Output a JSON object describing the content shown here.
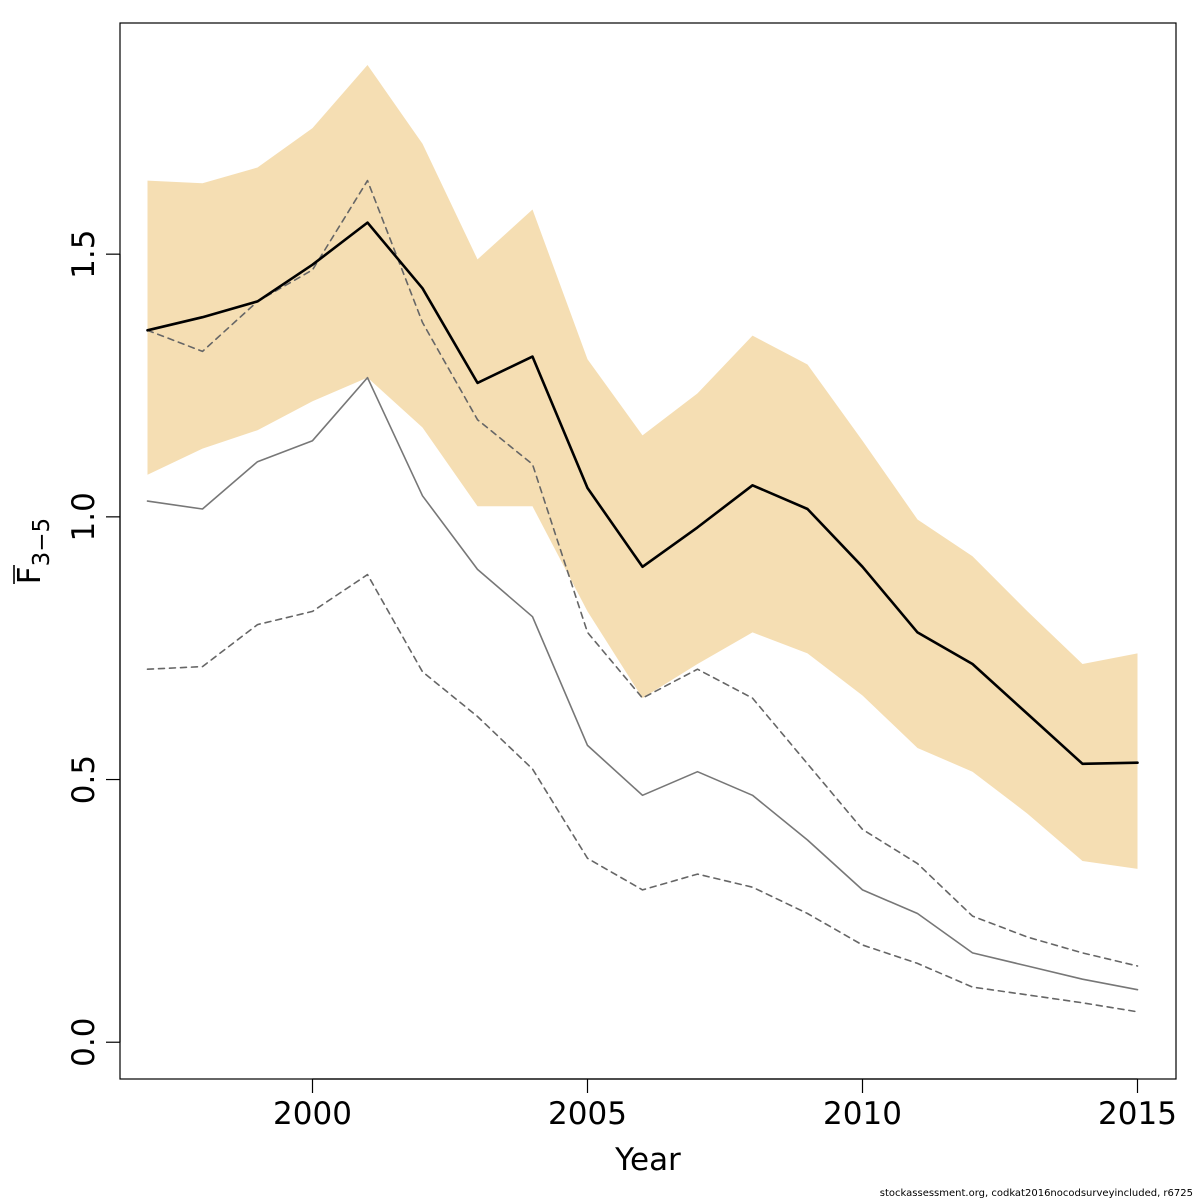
{
  "chart_data": {
    "type": "line",
    "xlabel": "Year",
    "ylabel": {
      "main": "F",
      "subscript": "3−5"
    },
    "footnote": "stockassessment.org, codkat2016nocodsurveyincluded, r6725",
    "xlim": [
      1996.5,
      2015.7
    ],
    "ylim": [
      -0.07,
      1.94
    ],
    "x_ticks": [
      2000,
      2005,
      2010,
      2015
    ],
    "y_ticks": [
      0.0,
      0.5,
      1.0,
      1.5
    ],
    "y_tick_labels": [
      "0.0",
      "0.5",
      "1.0",
      "1.5"
    ],
    "x": [
      1997,
      1998,
      1999,
      2000,
      2001,
      2002,
      2003,
      2004,
      2005,
      2006,
      2007,
      2008,
      2009,
      2010,
      2011,
      2012,
      2013,
      2014,
      2015
    ],
    "band": {
      "color": "#F5DEB3",
      "upper": [
        1.64,
        1.635,
        1.665,
        1.74,
        1.86,
        1.71,
        1.49,
        1.585,
        1.3,
        1.155,
        1.235,
        1.345,
        1.29,
        1.145,
        0.995,
        0.925,
        0.82,
        0.72,
        0.74
      ],
      "lower": [
        1.08,
        1.13,
        1.165,
        1.22,
        1.265,
        1.17,
        1.02,
        1.02,
        0.82,
        0.655,
        0.72,
        0.78,
        0.74,
        0.66,
        0.56,
        0.515,
        0.435,
        0.345,
        0.33
      ]
    },
    "series": [
      {
        "style": "solid-black",
        "color": "#000000",
        "values": [
          1.355,
          1.38,
          1.41,
          1.48,
          1.56,
          1.435,
          1.255,
          1.305,
          1.055,
          0.905,
          0.98,
          1.06,
          1.015,
          0.905,
          0.78,
          0.72,
          0.625,
          0.53,
          0.532
        ]
      },
      {
        "style": "dashed-gray",
        "color": "#666666",
        "values": [
          1.355,
          1.315,
          1.41,
          1.47,
          1.64,
          1.37,
          1.185,
          1.1,
          0.78,
          0.655,
          0.71,
          0.655,
          0.53,
          0.405,
          0.34,
          0.24,
          0.2,
          0.17,
          0.145
        ]
      },
      {
        "style": "solid-gray",
        "color": "#777777",
        "values": [
          1.03,
          1.015,
          1.105,
          1.145,
          1.265,
          1.04,
          0.9,
          0.81,
          0.565,
          0.47,
          0.515,
          0.47,
          0.385,
          0.29,
          0.245,
          0.17,
          0.145,
          0.12,
          0.1
        ]
      },
      {
        "style": "dashed-gray",
        "color": "#666666",
        "values": [
          0.71,
          0.715,
          0.795,
          0.82,
          0.89,
          0.705,
          0.62,
          0.52,
          0.35,
          0.29,
          0.32,
          0.295,
          0.245,
          0.185,
          0.15,
          0.105,
          0.09,
          0.075,
          0.058
        ]
      }
    ],
    "grid": false,
    "legend": "none"
  }
}
